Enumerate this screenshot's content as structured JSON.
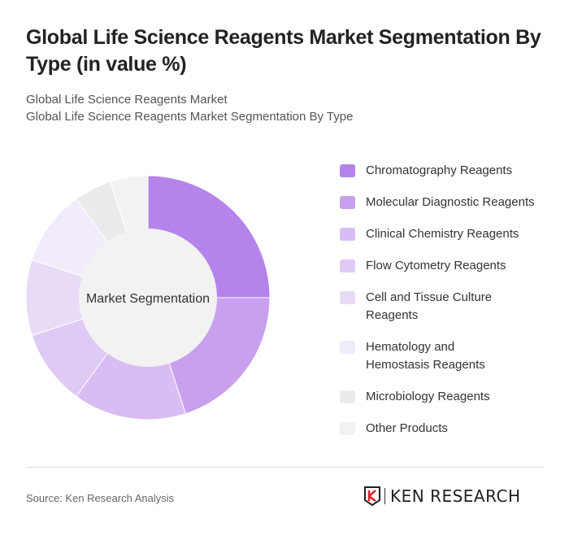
{
  "title": "Global Life Science Reagents Market Segmentation By Type (in value %)",
  "subtitle1": "Global Life Science Reagents Market",
  "subtitle2": "Global Life Science Reagents Market Segmentation By Type",
  "source": "Source: Ken Research Analysis",
  "logo_text": "KEN RESEARCH",
  "chart_data": {
    "type": "pie",
    "donut": true,
    "center_label": "Market Segmentation",
    "legend_position": "right",
    "categories": [
      "Chromatography Reagents",
      "Molecular Diagnostic Reagents",
      "Clinical Chemistry Reagents",
      "Flow Cytometry Reagents",
      "Cell and Tissue Culture Reagents",
      "Hematology and Hemostasis Reagents",
      "Microbiology Reagents",
      "Other Products"
    ],
    "values": [
      25,
      20,
      15,
      10,
      10,
      10,
      5,
      5
    ],
    "colors": [
      "#b584ea",
      "#c8a0ee",
      "#d8bcf3",
      "#dfcaf5",
      "#e8dbf8",
      "#f1ebfb",
      "#ebebeb",
      "#f2f2f2"
    ]
  }
}
